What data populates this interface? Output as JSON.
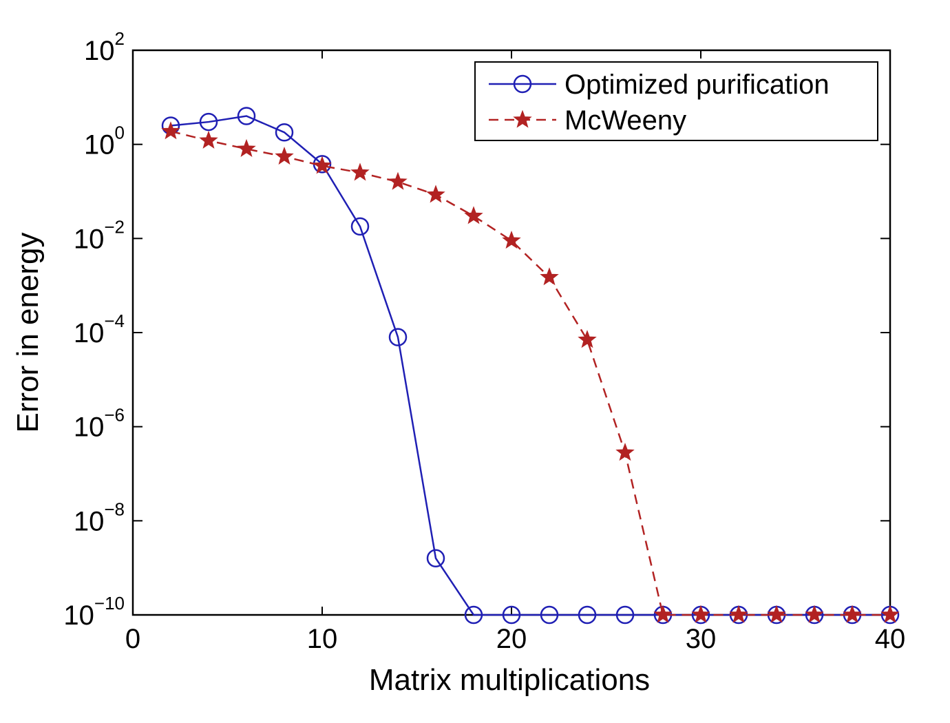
{
  "chart_data": {
    "type": "line",
    "xlabel": "Matrix multiplications",
    "ylabel": "Error in energy",
    "xlim": [
      0,
      40
    ],
    "ylim": [
      1e-10,
      100
    ],
    "yscale": "log",
    "xticks": [
      "0",
      "10",
      "20",
      "30",
      "40"
    ],
    "yticks": [
      {
        "base": "10",
        "exp": "2"
      },
      {
        "base": "10",
        "exp": "0"
      },
      {
        "base": "10",
        "exp": "−2"
      },
      {
        "base": "10",
        "exp": "−4"
      },
      {
        "base": "10",
        "exp": "−6"
      },
      {
        "base": "10",
        "exp": "−8"
      },
      {
        "base": "10",
        "exp": "−10"
      }
    ],
    "grid": false,
    "legend_position": "top-right",
    "series": [
      {
        "name": "Optimized purification",
        "color": "#1f1fb4",
        "line": "solid",
        "marker": "circle",
        "x": [
          2,
          4,
          6,
          8,
          10,
          12,
          14,
          16,
          18,
          20,
          22,
          24,
          26,
          28,
          30,
          32,
          34,
          36,
          38,
          40
        ],
        "y": [
          2.5,
          3,
          4,
          1.8,
          0.38,
          0.018,
          8e-05,
          1.6e-09,
          1e-10,
          1e-10,
          1e-10,
          1e-10,
          1e-10,
          1e-10,
          1e-10,
          1e-10,
          1e-10,
          1e-10,
          1e-10,
          1e-10
        ]
      },
      {
        "name": "McWeeny",
        "color": "#b22222",
        "line": "dashed",
        "marker": "star",
        "x": [
          2,
          4,
          6,
          8,
          10,
          12,
          14,
          16,
          18,
          20,
          22,
          24,
          26,
          28,
          30,
          32,
          34,
          36,
          38,
          40
        ],
        "y": [
          1.9,
          1.2,
          0.8,
          0.55,
          0.35,
          0.25,
          0.16,
          0.085,
          0.03,
          0.009,
          0.0015,
          7e-05,
          2.8e-07,
          1e-10,
          1e-10,
          1e-10,
          1e-10,
          1e-10,
          1e-10,
          1e-10
        ]
      }
    ]
  }
}
